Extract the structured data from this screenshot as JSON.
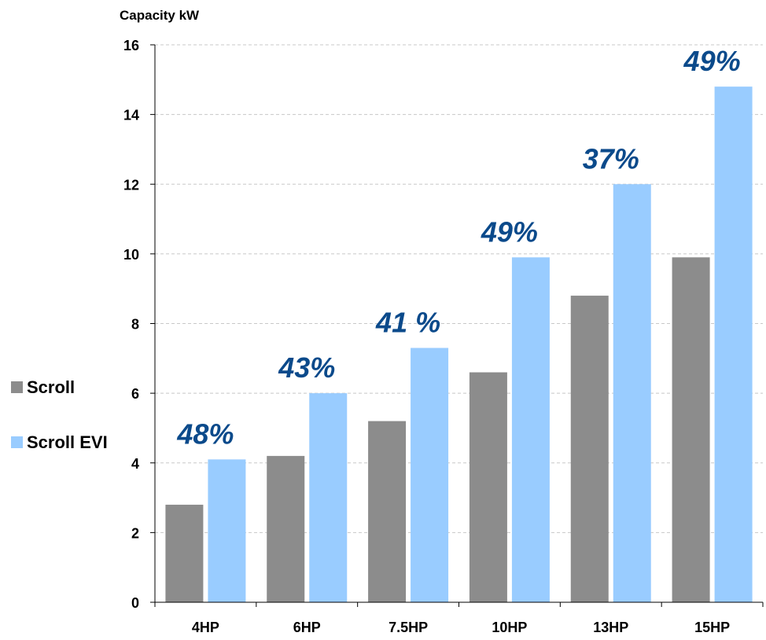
{
  "chart_data": {
    "type": "bar",
    "ylabel": "Capacity kW",
    "ylim": [
      0,
      16
    ],
    "yticks": [
      "0",
      "2",
      "4",
      "6",
      "8",
      "10",
      "12",
      "14",
      "16"
    ],
    "grid": true,
    "legend_position": "left",
    "categories": [
      "4HP",
      "6HP",
      "7.5HP",
      "10HP",
      "13HP",
      "15HP"
    ],
    "series": [
      {
        "name": "Scroll",
        "color": "#8c8c8c",
        "values": [
          2.8,
          4.2,
          5.2,
          6.6,
          8.8,
          9.9
        ]
      },
      {
        "name": "Scroll EVI",
        "color": "#99ccff",
        "values": [
          4.1,
          6.0,
          7.3,
          9.9,
          12.0,
          14.8
        ]
      }
    ],
    "annotations": [
      "48%",
      "43%",
      "41 %",
      "49%",
      "37%",
      "49%"
    ],
    "annotation_color": "#0b4a8b"
  }
}
